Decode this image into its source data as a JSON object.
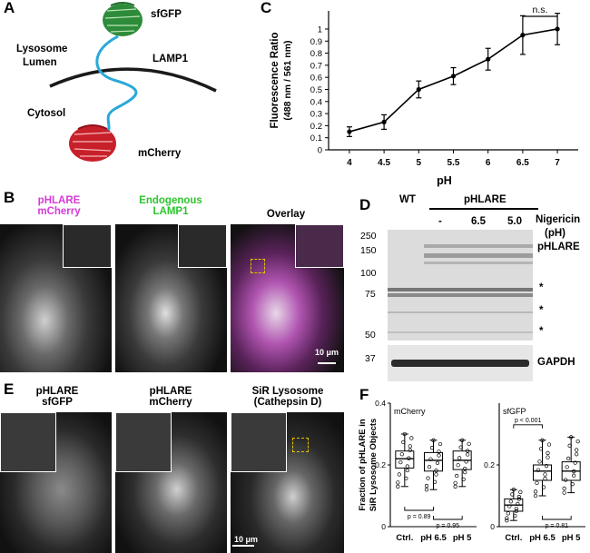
{
  "panels": {
    "A": {
      "label": "A",
      "sfgfp": "sfGFP",
      "lysosome": "Lysosome",
      "lumen": "Lumen",
      "lamp1": "LAMP1",
      "cytosol": "Cytosol",
      "mcherry": "mCherry",
      "colors": {
        "membrane": "#1a1a1a",
        "linker": "#29a9d8",
        "gfp": "#2e8b3a",
        "cherry": "#c8202a"
      }
    },
    "B": {
      "label": "B",
      "col1": [
        "pHLARE",
        "mCherry"
      ],
      "col2": [
        "Endogenous",
        "LAMP1"
      ],
      "col3": "Overlay",
      "scale": "10 μm",
      "colors": {
        "pHLARE": "#d63ad6",
        "lamp1": "#2ec52e"
      }
    },
    "D": {
      "label": "D",
      "wt": "WT",
      "phlare": "pHLARE",
      "lanes": [
        "-",
        "6.5",
        "5.0"
      ],
      "nigericin": [
        "Nigericin",
        "(pH)"
      ],
      "mw": [
        "250",
        "150",
        "100",
        "75",
        "50",
        "37"
      ],
      "band_label": "pHLARE",
      "stars": [
        "*",
        "*",
        "*"
      ],
      "loading": "GAPDH"
    },
    "E": {
      "label": "E",
      "col1": [
        "pHLARE",
        "sfGFP"
      ],
      "col2": [
        "pHLARE",
        "mCherry"
      ],
      "col3": [
        "SiR Lysosome",
        "(Cathepsin D)"
      ],
      "scale": "10 μm"
    }
  },
  "chart_data": [
    {
      "panel": "C",
      "type": "line",
      "x": [
        4,
        4.5,
        5,
        5.5,
        6,
        6.5,
        7
      ],
      "y": [
        0.15,
        0.23,
        0.5,
        0.61,
        0.75,
        0.95,
        1.0
      ],
      "err": [
        0.04,
        0.06,
        0.07,
        0.07,
        0.09,
        0.16,
        0.13
      ],
      "xlabel": "pH",
      "ylabel": [
        "Fluorescence Ratio",
        "(488 nm / 561 nm)"
      ],
      "xticks": [
        "4",
        "4.5",
        "5",
        "5.5",
        "6",
        "6.5",
        "7"
      ],
      "yticks": [
        "0",
        "0.1",
        "0.2",
        "0.3",
        "0.4",
        "0.5",
        "0.6",
        "0.7",
        "0.8",
        "0.9",
        "1"
      ],
      "xlim": [
        3.7,
        7.3
      ],
      "ylim": [
        0,
        1.15
      ],
      "annotation": "n.s.",
      "annotation_between": [
        6.5,
        7
      ]
    },
    {
      "panel": "F",
      "type": "box",
      "subtitle": "mCherry",
      "ylabel": [
        "Fraction of pHLARE in",
        "SiR Lysosome Objects"
      ],
      "categories": [
        "Ctrl.",
        "pH 6.5",
        "pH 5"
      ],
      "ylim": [
        0,
        0.4
      ],
      "yticks": [
        "0",
        "0.2",
        "0.4"
      ],
      "boxes": [
        {
          "min": 0.13,
          "q1": 0.19,
          "median": 0.22,
          "q3": 0.245,
          "max": 0.3
        },
        {
          "min": 0.12,
          "q1": 0.18,
          "median": 0.215,
          "q3": 0.24,
          "max": 0.28
        },
        {
          "min": 0.13,
          "q1": 0.185,
          "median": 0.215,
          "q3": 0.245,
          "max": 0.28
        }
      ],
      "stats": [
        {
          "between": [
            0,
            1
          ],
          "text": "p = 0.89"
        },
        {
          "between": [
            1,
            2
          ],
          "text": "p = 0.95"
        }
      ]
    },
    {
      "panel": "F",
      "type": "box",
      "subtitle": "sfGFP",
      "categories": [
        "Ctrl.",
        "pH 6.5",
        "pH 5"
      ],
      "ylim": [
        0,
        0.4
      ],
      "yticks": [
        "0",
        "0.2"
      ],
      "boxes": [
        {
          "min": 0.02,
          "q1": 0.05,
          "median": 0.07,
          "q3": 0.09,
          "max": 0.12
        },
        {
          "min": 0.1,
          "q1": 0.15,
          "median": 0.18,
          "q3": 0.2,
          "max": 0.28
        },
        {
          "min": 0.11,
          "q1": 0.15,
          "median": 0.18,
          "q3": 0.21,
          "max": 0.29
        }
      ],
      "stats": [
        {
          "between": [
            0,
            1
          ],
          "text": "p < 0.001"
        },
        {
          "between": [
            1,
            2
          ],
          "text": "p = 0.81"
        }
      ]
    }
  ]
}
